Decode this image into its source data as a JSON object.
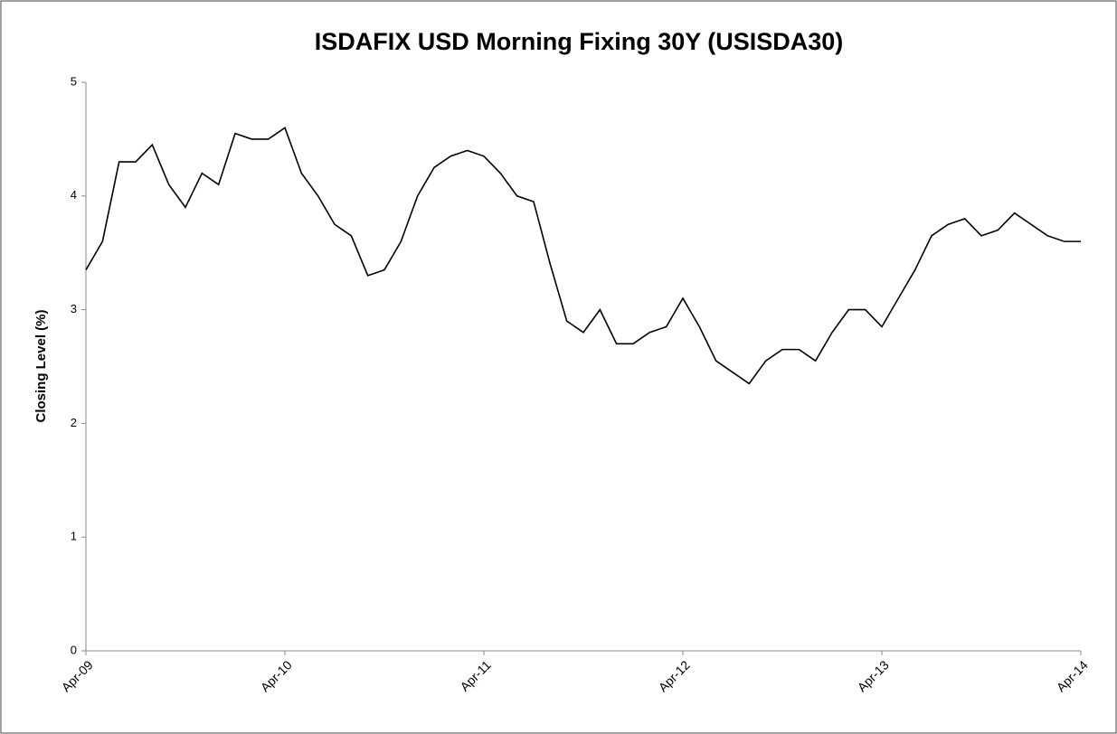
{
  "chart_data": {
    "type": "line",
    "title": "ISDAFIX USD Morning Fixing 30Y (USISDA30)",
    "y_label": "Closing Level (%)",
    "x": [
      "2009-04",
      "2009-05",
      "2009-06",
      "2009-07",
      "2009-08",
      "2009-09",
      "2009-10",
      "2009-11",
      "2009-12",
      "2010-01",
      "2010-02",
      "2010-03",
      "2010-04",
      "2010-05",
      "2010-06",
      "2010-07",
      "2010-08",
      "2010-09",
      "2010-10",
      "2010-11",
      "2010-12",
      "2011-01",
      "2011-02",
      "2011-03",
      "2011-04",
      "2011-05",
      "2011-06",
      "2011-07",
      "2011-08",
      "2011-09",
      "2011-10",
      "2011-11",
      "2011-12",
      "2012-01",
      "2012-02",
      "2012-03",
      "2012-04",
      "2012-05",
      "2012-06",
      "2012-07",
      "2012-08",
      "2012-09",
      "2012-10",
      "2012-11",
      "2012-12",
      "2013-01",
      "2013-02",
      "2013-03",
      "2013-04",
      "2013-05",
      "2013-06",
      "2013-07",
      "2013-08",
      "2013-09",
      "2013-10",
      "2013-11",
      "2013-12",
      "2014-01",
      "2014-02",
      "2014-03",
      "2014-04"
    ],
    "series": [
      {
        "name": "USISDA30",
        "color": "#000000",
        "values": [
          3.35,
          3.6,
          4.3,
          4.3,
          4.45,
          4.1,
          3.9,
          4.2,
          4.1,
          4.55,
          4.5,
          4.5,
          4.6,
          4.2,
          4.0,
          3.75,
          3.65,
          3.3,
          3.35,
          3.6,
          4.0,
          4.25,
          4.35,
          4.4,
          4.35,
          4.2,
          4.0,
          3.95,
          3.4,
          2.9,
          2.8,
          3.0,
          2.7,
          2.7,
          2.8,
          2.85,
          3.1,
          2.85,
          2.55,
          2.45,
          2.35,
          2.55,
          2.65,
          2.65,
          2.55,
          2.8,
          3.0,
          3.0,
          2.85,
          3.1,
          3.35,
          3.65,
          3.75,
          3.8,
          3.65,
          3.7,
          3.85,
          3.75,
          3.65,
          3.6,
          3.6
        ]
      }
    ],
    "xlim": [
      "2009-04",
      "2014-04"
    ],
    "xticks": [
      {
        "value": "2009-04",
        "label": "Apr-09"
      },
      {
        "value": "2010-04",
        "label": "Apr-10"
      },
      {
        "value": "2011-04",
        "label": "Apr-11"
      },
      {
        "value": "2012-04",
        "label": "Apr-12"
      },
      {
        "value": "2013-04",
        "label": "Apr-13"
      },
      {
        "value": "2014-04",
        "label": "Apr-14"
      }
    ],
    "ylim": [
      0,
      5
    ],
    "yticks": [
      0,
      1,
      2,
      3,
      4,
      5
    ],
    "grid": false
  }
}
